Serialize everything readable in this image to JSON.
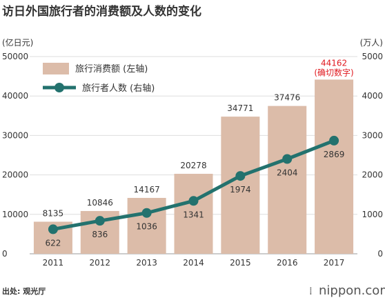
{
  "title": "访日外国旅行者的消费额及人数的变化",
  "left_unit": "(亿日元)",
  "right_unit": "(万人)",
  "source": "出处: 观光厅",
  "brand": "nippon.com",
  "colors": {
    "bar": "#dcbca9",
    "line": "#23726e",
    "highlight": "#e0191f",
    "grid": "#dddddd"
  },
  "chart_data": {
    "type": "bar+line",
    "categories": [
      "2011",
      "2012",
      "2013",
      "2014",
      "2015",
      "2016",
      "2017"
    ],
    "series": [
      {
        "name": "旅行消费额 (左轴)",
        "type": "bar",
        "axis": "left",
        "values": [
          8135,
          10846,
          14167,
          20278,
          34771,
          37476,
          44162
        ]
      },
      {
        "name": "旅行者人数 (右轴)",
        "type": "line",
        "axis": "right",
        "values": [
          622,
          836,
          1036,
          1341,
          1974,
          2404,
          2869
        ]
      }
    ],
    "left_ylim": [
      0,
      50000
    ],
    "left_ticks": [
      "0",
      "10000",
      "20000",
      "30000",
      "40000",
      "50000"
    ],
    "right_ylim": [
      0,
      5000
    ],
    "right_ticks": [
      "0",
      "1000",
      "2000",
      "3000",
      "4000",
      "5000"
    ],
    "annotation": {
      "category": "2017",
      "text": "(确切数字)"
    },
    "grid": true,
    "legend_position": "top-left"
  }
}
